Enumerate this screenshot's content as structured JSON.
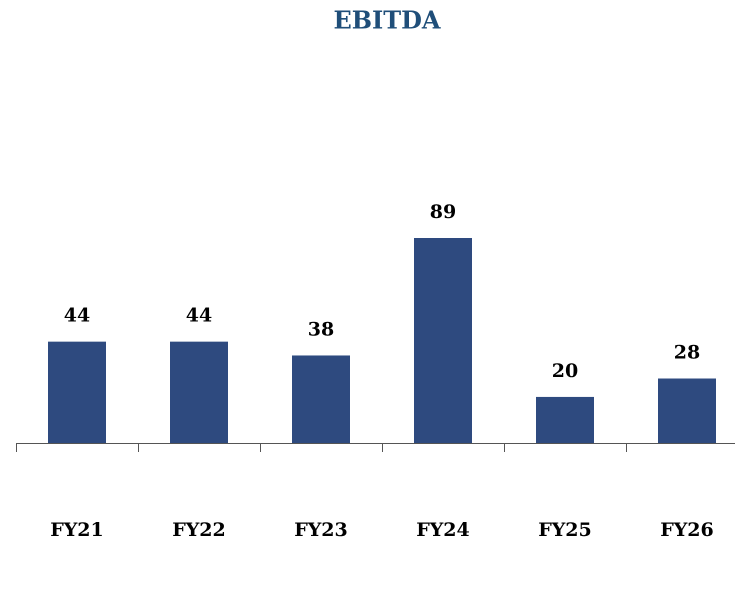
{
  "chart_data": {
    "type": "bar",
    "title": "EBITDA",
    "categories": [
      "FY21",
      "FY22",
      "FY23",
      "FY24",
      "FY25",
      "FY26"
    ],
    "values": [
      44,
      44,
      38,
      89,
      20,
      28
    ],
    "color": "#2e4a7f",
    "grid": false
  }
}
